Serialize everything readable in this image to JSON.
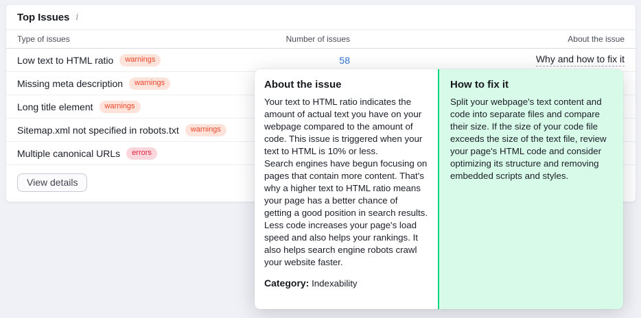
{
  "card": {
    "title": "Top Issues",
    "info_icon": "i",
    "table": {
      "headers": [
        "Type of issues",
        "Number of issues",
        "About the issue"
      ],
      "rows": [
        {
          "label": "Low text to HTML ratio",
          "badge": "warnings",
          "count": "58",
          "link": "Why and how to fix it"
        },
        {
          "label": "Missing meta description",
          "badge": "warnings"
        },
        {
          "label": "Long title element",
          "badge": "warnings"
        },
        {
          "label": "Sitemap.xml not specified in robots.txt",
          "badge": "warnings"
        },
        {
          "label": "Multiple canonical URLs",
          "badge": "errors"
        }
      ]
    },
    "view_details_label": "View details"
  },
  "popup": {
    "about": {
      "title": "About the issue",
      "paragraphs": [
        "Your text to HTML ratio indicates the amount of actual text you have on your webpage compared to the amount of code. This issue is triggered when your text to HTML is 10% or less.",
        "Search engines have begun focusing on pages that contain more content. That's why a higher text to HTML ratio means your page has a better chance of getting a good position in search results.",
        "Less code increases your page's load speed and also helps your rankings. It also helps search engine robots crawl your website faster."
      ],
      "category_label": "Category:",
      "category_value": "Indexability"
    },
    "fix": {
      "title": "How to fix it",
      "text": "Split your webpage's text content and code into separate files and compare their size. If the size of your code file exceeds the size of the text file, review your page's HTML code and consider optimizing its structure and removing embedded scripts and styles."
    }
  },
  "colors": {
    "accent_green": "#00d57e",
    "green_panel_bg": "#d8fae8",
    "warning_badge_bg": "#fde3da",
    "warning_badge_text": "#ec442a",
    "error_badge_bg": "#fbd7dd",
    "error_badge_text": "#e01f3f",
    "link_blue": "#2e70d6",
    "page_bg": "#eff1f6"
  }
}
